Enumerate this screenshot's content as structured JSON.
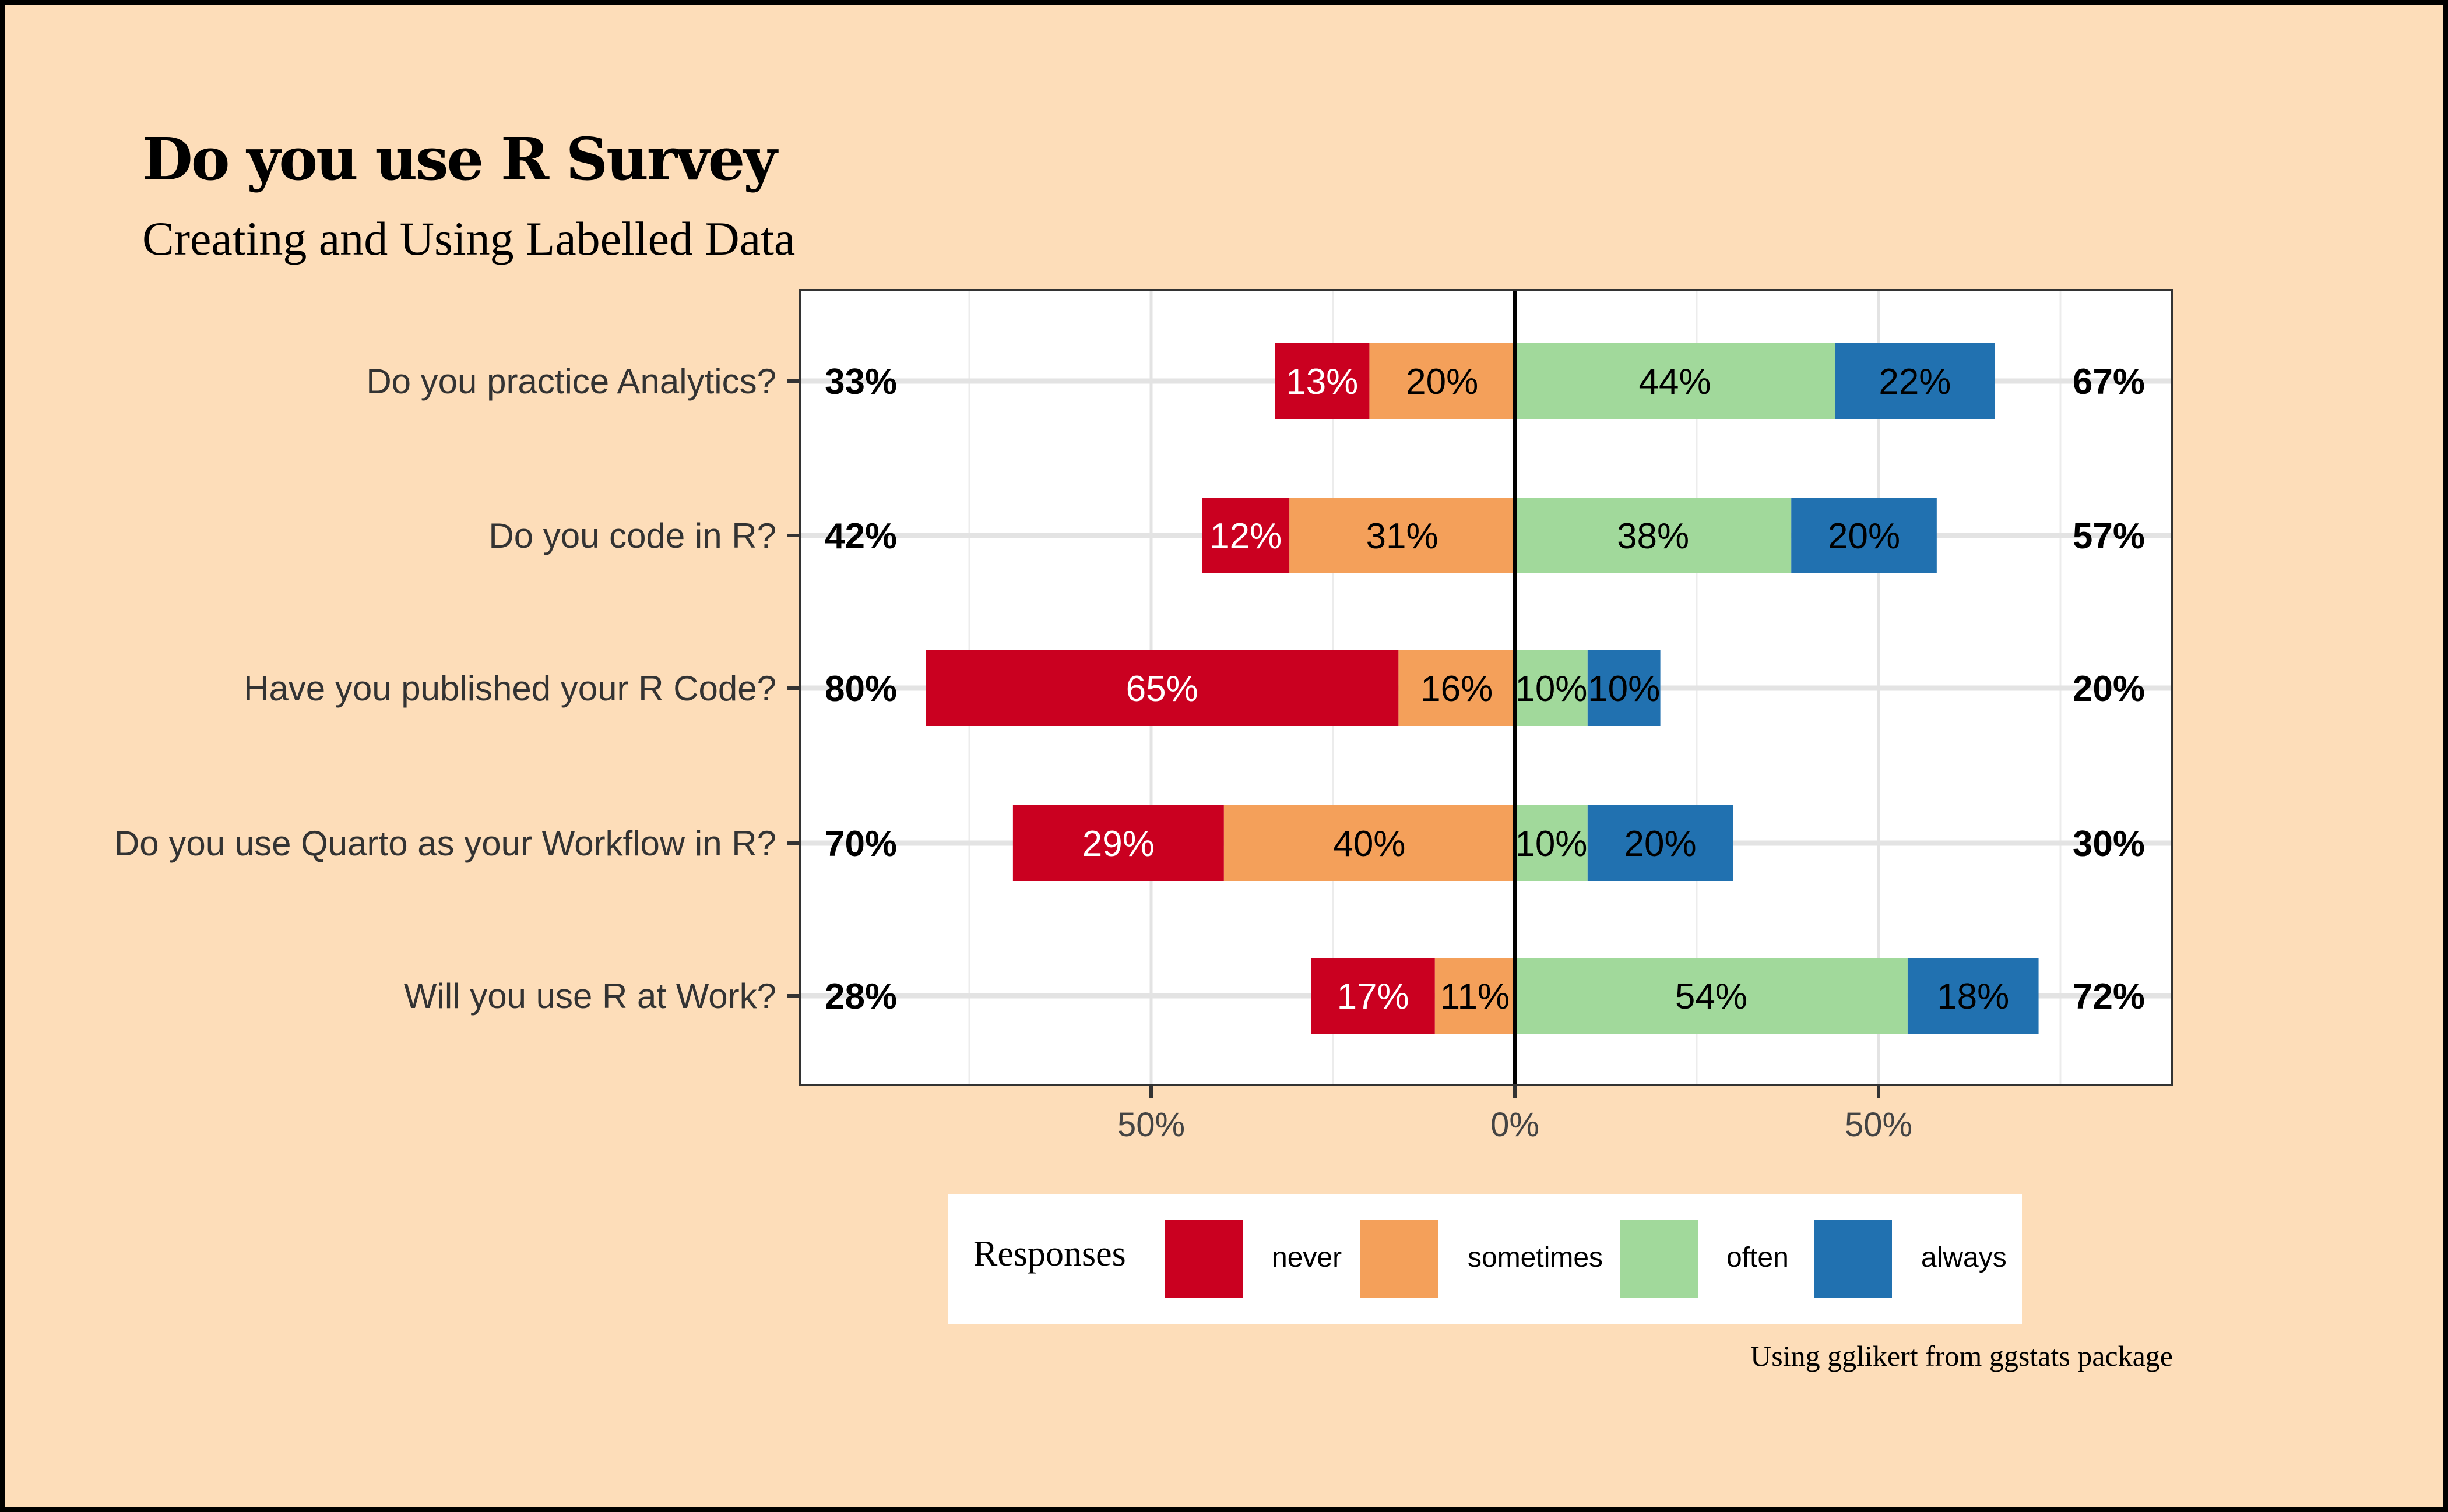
{
  "title": "Do you use R Survey",
  "subtitle": "Creating and Using Labelled Data",
  "caption": "Using gglikert from ggstats package",
  "chart_data": {
    "type": "bar",
    "orientation": "horizontal-diverging-stacked",
    "title": "Do you use R Survey",
    "subtitle": "Creating and Using Labelled Data",
    "xlabel": "",
    "ylabel": "",
    "xlim": [
      -90,
      90
    ],
    "x_ticks": [
      -50,
      0,
      50
    ],
    "x_tick_labels": [
      "50%",
      "0%",
      "50%"
    ],
    "grid": true,
    "legend_position": "bottom",
    "legend_title": "Responses",
    "categories": [
      "Do you practice Analytics?",
      "Do you code in R?",
      "Have you published your R Code?",
      "Do you use Quarto as your Workflow in R?",
      "Will you use R at Work?"
    ],
    "series": [
      {
        "name": "never",
        "side": "negative",
        "color": "#CA0020",
        "label_color": "#FFFFFF",
        "values": [
          13,
          12,
          65,
          29,
          17
        ],
        "labels": [
          "13%",
          "12%",
          "65%",
          "29%",
          "17%"
        ]
      },
      {
        "name": "sometimes",
        "side": "negative",
        "color": "#F4A05A",
        "label_color": "#000000",
        "values": [
          20,
          31,
          16,
          40,
          11
        ],
        "labels": [
          "20%",
          "31%",
          "16%",
          "40%",
          "11%"
        ]
      },
      {
        "name": "often",
        "side": "positive",
        "color": "#A1D99B",
        "label_color": "#000000",
        "values": [
          44,
          38,
          10,
          10,
          54
        ],
        "labels": [
          "44%",
          "38%",
          "10%",
          "10%",
          "54%"
        ]
      },
      {
        "name": "always",
        "side": "positive",
        "color": "#2171B0",
        "label_color": "#000000",
        "values": [
          22,
          20,
          10,
          20,
          18
        ],
        "labels": [
          "22%",
          "20%",
          "10%",
          "20%",
          "18%"
        ]
      }
    ],
    "totals_left": [
      "33%",
      "42%",
      "80%",
      "70%",
      "28%"
    ],
    "totals_right": [
      "67%",
      "57%",
      "20%",
      "30%",
      "72%"
    ]
  },
  "legend": {
    "title": "Responses",
    "items": [
      {
        "label": "never",
        "color": "#CA0020"
      },
      {
        "label": "sometimes",
        "color": "#F4A05A"
      },
      {
        "label": "often",
        "color": "#A1D99B"
      },
      {
        "label": "always",
        "color": "#2171B0"
      }
    ]
  }
}
